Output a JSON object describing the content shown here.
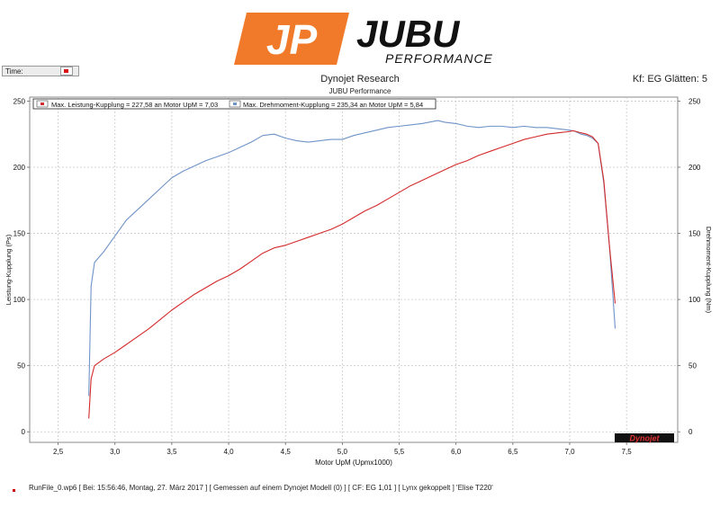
{
  "header": {
    "logo_jp": "JP",
    "logo_brand": "JUBU",
    "logo_tagline": "PERFORMANCE",
    "time_label": "Time:",
    "app_title": "Dynojet Research",
    "app_subtitle": "JUBU Performance",
    "kf_label": "Kf: EG Glätten: 5"
  },
  "footer": {
    "text": "RunFile_0.wp6 [ Bei: 15:56:46, Montag, 27. März 2017 ] [ Gemessen auf einem Dynojet Modell (0) ] [ CF: EG 1,01 ] [ Lynx gekoppelt ] 'Elise T220'"
  },
  "watermark": "Dynojet",
  "colors": {
    "power": "#d42a2a",
    "torque": "#6f94c8",
    "logo_orange": "#f07a2a",
    "grid": "#c8c8c8"
  },
  "chart_data": {
    "type": "line",
    "xlabel": "Motor UpM (Upmx1000)",
    "ylabel": "Leistung-Kupplung (Ps)",
    "y2label": "Drehmoment-Kupplung (Nm)",
    "xlim": [
      2.25,
      7.95
    ],
    "ylim": [
      -8,
      253
    ],
    "xticks": [
      2.5,
      3.0,
      3.5,
      4.0,
      4.5,
      5.0,
      5.5,
      6.0,
      6.5,
      7.0,
      7.5
    ],
    "xtick_labels": [
      "2,5",
      "3,0",
      "3,5",
      "4,0",
      "4,5",
      "5,0",
      "5,5",
      "6,0",
      "6,5",
      "7,0",
      "7,5"
    ],
    "yticks": [
      0,
      50,
      100,
      150,
      200,
      250
    ],
    "grid": true,
    "legend_position": "top-left",
    "series": [
      {
        "name": "Max. Leistung-Kupplung = 227,58 an Motor UpM = 7,03",
        "axis": "left",
        "color": "#d42a2a",
        "x": [
          2.77,
          2.79,
          2.82,
          2.9,
          3.0,
          3.1,
          3.2,
          3.3,
          3.4,
          3.5,
          3.6,
          3.7,
          3.8,
          3.9,
          4.0,
          4.1,
          4.2,
          4.3,
          4.4,
          4.5,
          4.6,
          4.7,
          4.8,
          4.9,
          5.0,
          5.1,
          5.2,
          5.3,
          5.4,
          5.5,
          5.6,
          5.7,
          5.8,
          5.9,
          6.0,
          6.1,
          6.2,
          6.3,
          6.4,
          6.5,
          6.6,
          6.7,
          6.8,
          6.9,
          7.0,
          7.03,
          7.1,
          7.15,
          7.2,
          7.25,
          7.3,
          7.35,
          7.4
        ],
        "y": [
          10,
          40,
          50,
          55,
          60,
          66,
          72,
          78,
          85,
          92,
          98,
          104,
          109,
          114,
          118,
          123,
          129,
          135,
          139,
          141,
          144,
          147,
          150,
          153,
          157,
          162,
          167,
          171,
          176,
          181,
          186,
          190,
          194,
          198,
          202,
          205,
          209,
          212,
          215,
          218,
          221,
          223,
          225,
          226,
          227,
          227.6,
          226,
          225,
          223,
          218,
          190,
          140,
          97
        ]
      },
      {
        "name": "Max. Drehmoment-Kupplung = 235,34 an Motor UpM = 5,84",
        "axis": "right",
        "color": "#6f94c8",
        "x": [
          2.77,
          2.79,
          2.82,
          2.9,
          3.0,
          3.1,
          3.2,
          3.3,
          3.4,
          3.5,
          3.6,
          3.7,
          3.8,
          3.9,
          4.0,
          4.1,
          4.2,
          4.3,
          4.4,
          4.5,
          4.6,
          4.7,
          4.8,
          4.9,
          5.0,
          5.1,
          5.2,
          5.3,
          5.4,
          5.5,
          5.6,
          5.7,
          5.84,
          5.9,
          6.0,
          6.1,
          6.2,
          6.3,
          6.4,
          6.5,
          6.6,
          6.7,
          6.8,
          6.9,
          7.0,
          7.05,
          7.1,
          7.15,
          7.2,
          7.25,
          7.3,
          7.35,
          7.4
        ],
        "y": [
          27,
          110,
          128,
          136,
          148,
          160,
          168,
          176,
          184,
          192,
          197,
          201,
          205,
          208,
          211,
          215,
          219,
          224,
          225,
          222,
          220,
          219,
          220,
          221,
          221,
          224,
          226,
          228,
          230,
          231,
          232,
          233,
          235.3,
          234,
          233,
          231,
          230,
          231,
          231,
          230,
          231,
          230,
          230,
          229,
          228,
          227,
          225,
          224,
          222,
          218,
          188,
          140,
          78
        ]
      }
    ]
  }
}
